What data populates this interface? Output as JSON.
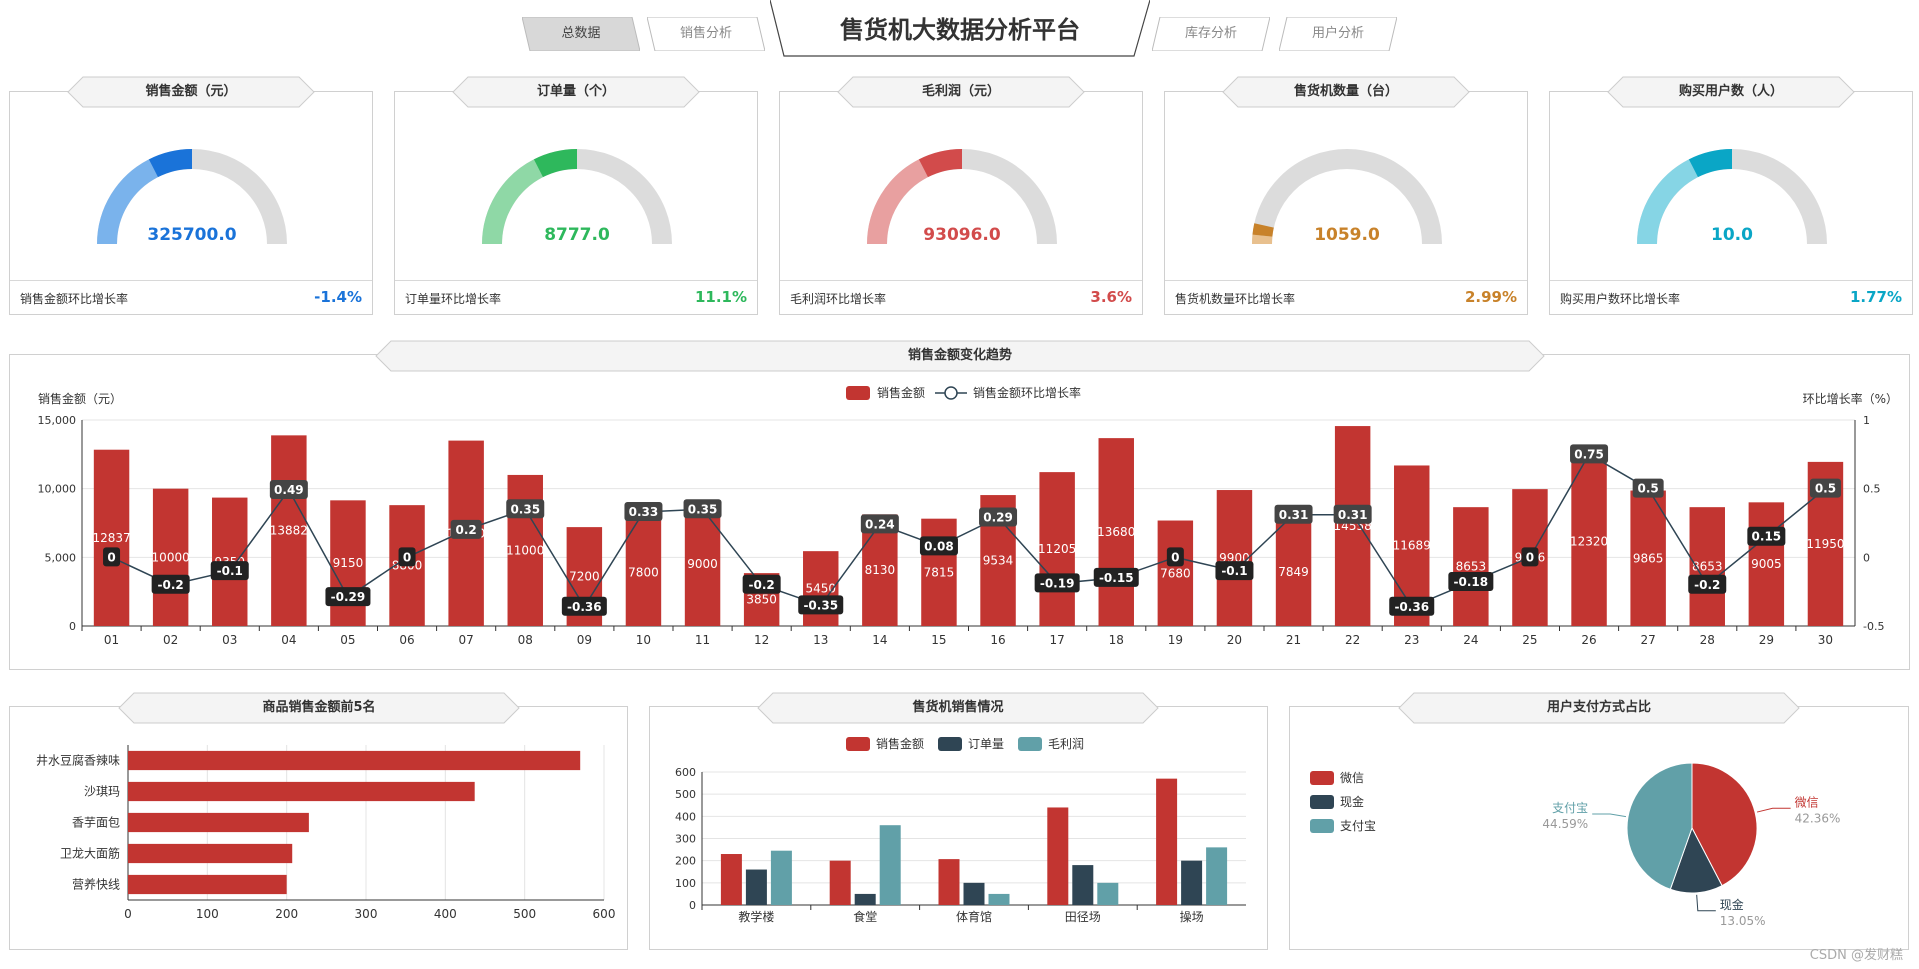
{
  "header": {
    "title": "售货机大数据分析平台",
    "tabs": [
      {
        "label": "总数据",
        "active": true
      },
      {
        "label": "销售分析",
        "active": false
      },
      {
        "label": "库存分析",
        "active": false
      },
      {
        "label": "用户分析",
        "active": false
      }
    ]
  },
  "kpis": [
    {
      "title": "销售金额（元）",
      "value": "325700.0",
      "value_num": 325700,
      "ratio": 0.5,
      "growth_label": "销售金额环比增长率",
      "growth": "-1.4%",
      "color": "#1a73d9",
      "light": "#7ab3ec"
    },
    {
      "title": "订单量（个）",
      "value": "8777.0",
      "value_num": 8777,
      "ratio": 0.5,
      "growth_label": "订单量环比增长率",
      "growth": "11.1%",
      "color": "#2eb85c",
      "light": "#8fd8a6"
    },
    {
      "title": "毛利润（元）",
      "value": "93096.0",
      "value_num": 93096,
      "ratio": 0.5,
      "growth_label": "毛利润环比增长率",
      "growth": "3.6%",
      "color": "#d24b4b",
      "light": "#e8a0a0"
    },
    {
      "title": "售货机数量（台）",
      "value": "1059.0",
      "value_num": 1059,
      "ratio": 0.07,
      "growth_label": "售货机数量环比增长率",
      "growth": "2.99%",
      "color": "#c8822a",
      "light": "#e8c08e"
    },
    {
      "title": "购买用户数（人）",
      "value": "10.0",
      "value_num": 10,
      "ratio": 0.5,
      "growth_label": "购买用户数环比增长率",
      "growth": "1.77%",
      "color": "#0aa6c6",
      "light": "#86d5e5"
    }
  ],
  "panels": {
    "trend": "销售金额变化趋势",
    "top5": "商品销售金额前5名",
    "machines": "售货机销售情况",
    "payment": "用户支付方式占比"
  },
  "chart_data": [
    {
      "type": "bar",
      "title": "销售金额变化趋势",
      "ylabel": "销售金额（元）",
      "y2label": "环比增长率（%）",
      "ylim": [
        0,
        15000
      ],
      "y2lim": [
        -0.5,
        1
      ],
      "yticks": [
        "0",
        "5,000",
        "10,000",
        "15,000"
      ],
      "y2ticks": [
        "-0.5",
        "0",
        "0.5",
        "1"
      ],
      "legend": [
        "销售金额",
        "销售金额环比增长率"
      ],
      "legend_position": "top-center",
      "categories": [
        "01",
        "02",
        "03",
        "04",
        "05",
        "06",
        "07",
        "08",
        "09",
        "10",
        "11",
        "12",
        "13",
        "14",
        "15",
        "16",
        "17",
        "18",
        "19",
        "20",
        "21",
        "22",
        "23",
        "24",
        "25",
        "26",
        "27",
        "28",
        "29",
        "30"
      ],
      "series": [
        {
          "name": "销售金额",
          "type": "bar",
          "color": "#c23531",
          "values": [
            12837,
            10000,
            9350,
            13882,
            9150,
            8800,
            13500,
            11000,
            7200,
            7800,
            9000,
            3850,
            5450,
            8130,
            7815,
            9534,
            11205,
            13680,
            7680,
            9900,
            7849,
            14558,
            11689,
            8653,
            9966,
            12320,
            9865,
            8653,
            9005,
            11950
          ]
        },
        {
          "name": "销售金额环比增长率",
          "type": "line",
          "color": "#2f4554",
          "values": [
            0,
            -0.2,
            -0.1,
            0.49,
            -0.29,
            0,
            0.2,
            0.35,
            -0.36,
            0.33,
            0.35,
            -0.2,
            -0.35,
            0.24,
            0.08,
            0.29,
            -0.19,
            -0.15,
            0,
            -0.1,
            0.31,
            0.31,
            -0.36,
            -0.18,
            0,
            0.75,
            0.5,
            -0.2,
            0.15,
            0.5
          ]
        }
      ]
    },
    {
      "type": "bar",
      "title": "商品销售金额前5名",
      "orientation": "horizontal",
      "categories": [
        "井水豆腐香辣味",
        "沙琪玛",
        "香芋面包",
        "卫龙大面筋",
        "营养快线"
      ],
      "values": [
        570,
        437,
        228,
        207,
        200
      ],
      "xlim": [
        0,
        600
      ],
      "xticks": [
        "0",
        "100",
        "200",
        "300",
        "400",
        "500",
        "600"
      ],
      "color": "#c23531"
    },
    {
      "type": "bar",
      "title": "售货机销售情况",
      "categories": [
        "教学楼",
        "食堂",
        "体育馆",
        "田径场",
        "操场"
      ],
      "ylim": [
        0,
        600
      ],
      "yticks": [
        "0",
        "100",
        "200",
        "300",
        "400",
        "500",
        "600"
      ],
      "legend_position": "top-center",
      "series": [
        {
          "name": "销售金额",
          "color": "#c23531",
          "values": [
            230,
            200,
            207,
            440,
            570
          ]
        },
        {
          "name": "订单量",
          "color": "#2f4554",
          "values": [
            160,
            50,
            100,
            180,
            200
          ]
        },
        {
          "name": "毛利润",
          "color": "#61a0a8",
          "values": [
            245,
            360,
            50,
            100,
            260
          ]
        }
      ]
    },
    {
      "type": "pie",
      "title": "用户支付方式占比",
      "legend_position": "left",
      "slices": [
        {
          "name": "微信",
          "value": 42.36,
          "label": "42.36%",
          "color": "#c23531"
        },
        {
          "name": "现金",
          "value": 13.05,
          "label": "13.05%",
          "color": "#2f4554"
        },
        {
          "name": "支付宝",
          "value": 44.59,
          "label": "44.59%",
          "color": "#61a0a8"
        }
      ]
    }
  ],
  "footer": {
    "credit": "CSDN @发财糕"
  }
}
